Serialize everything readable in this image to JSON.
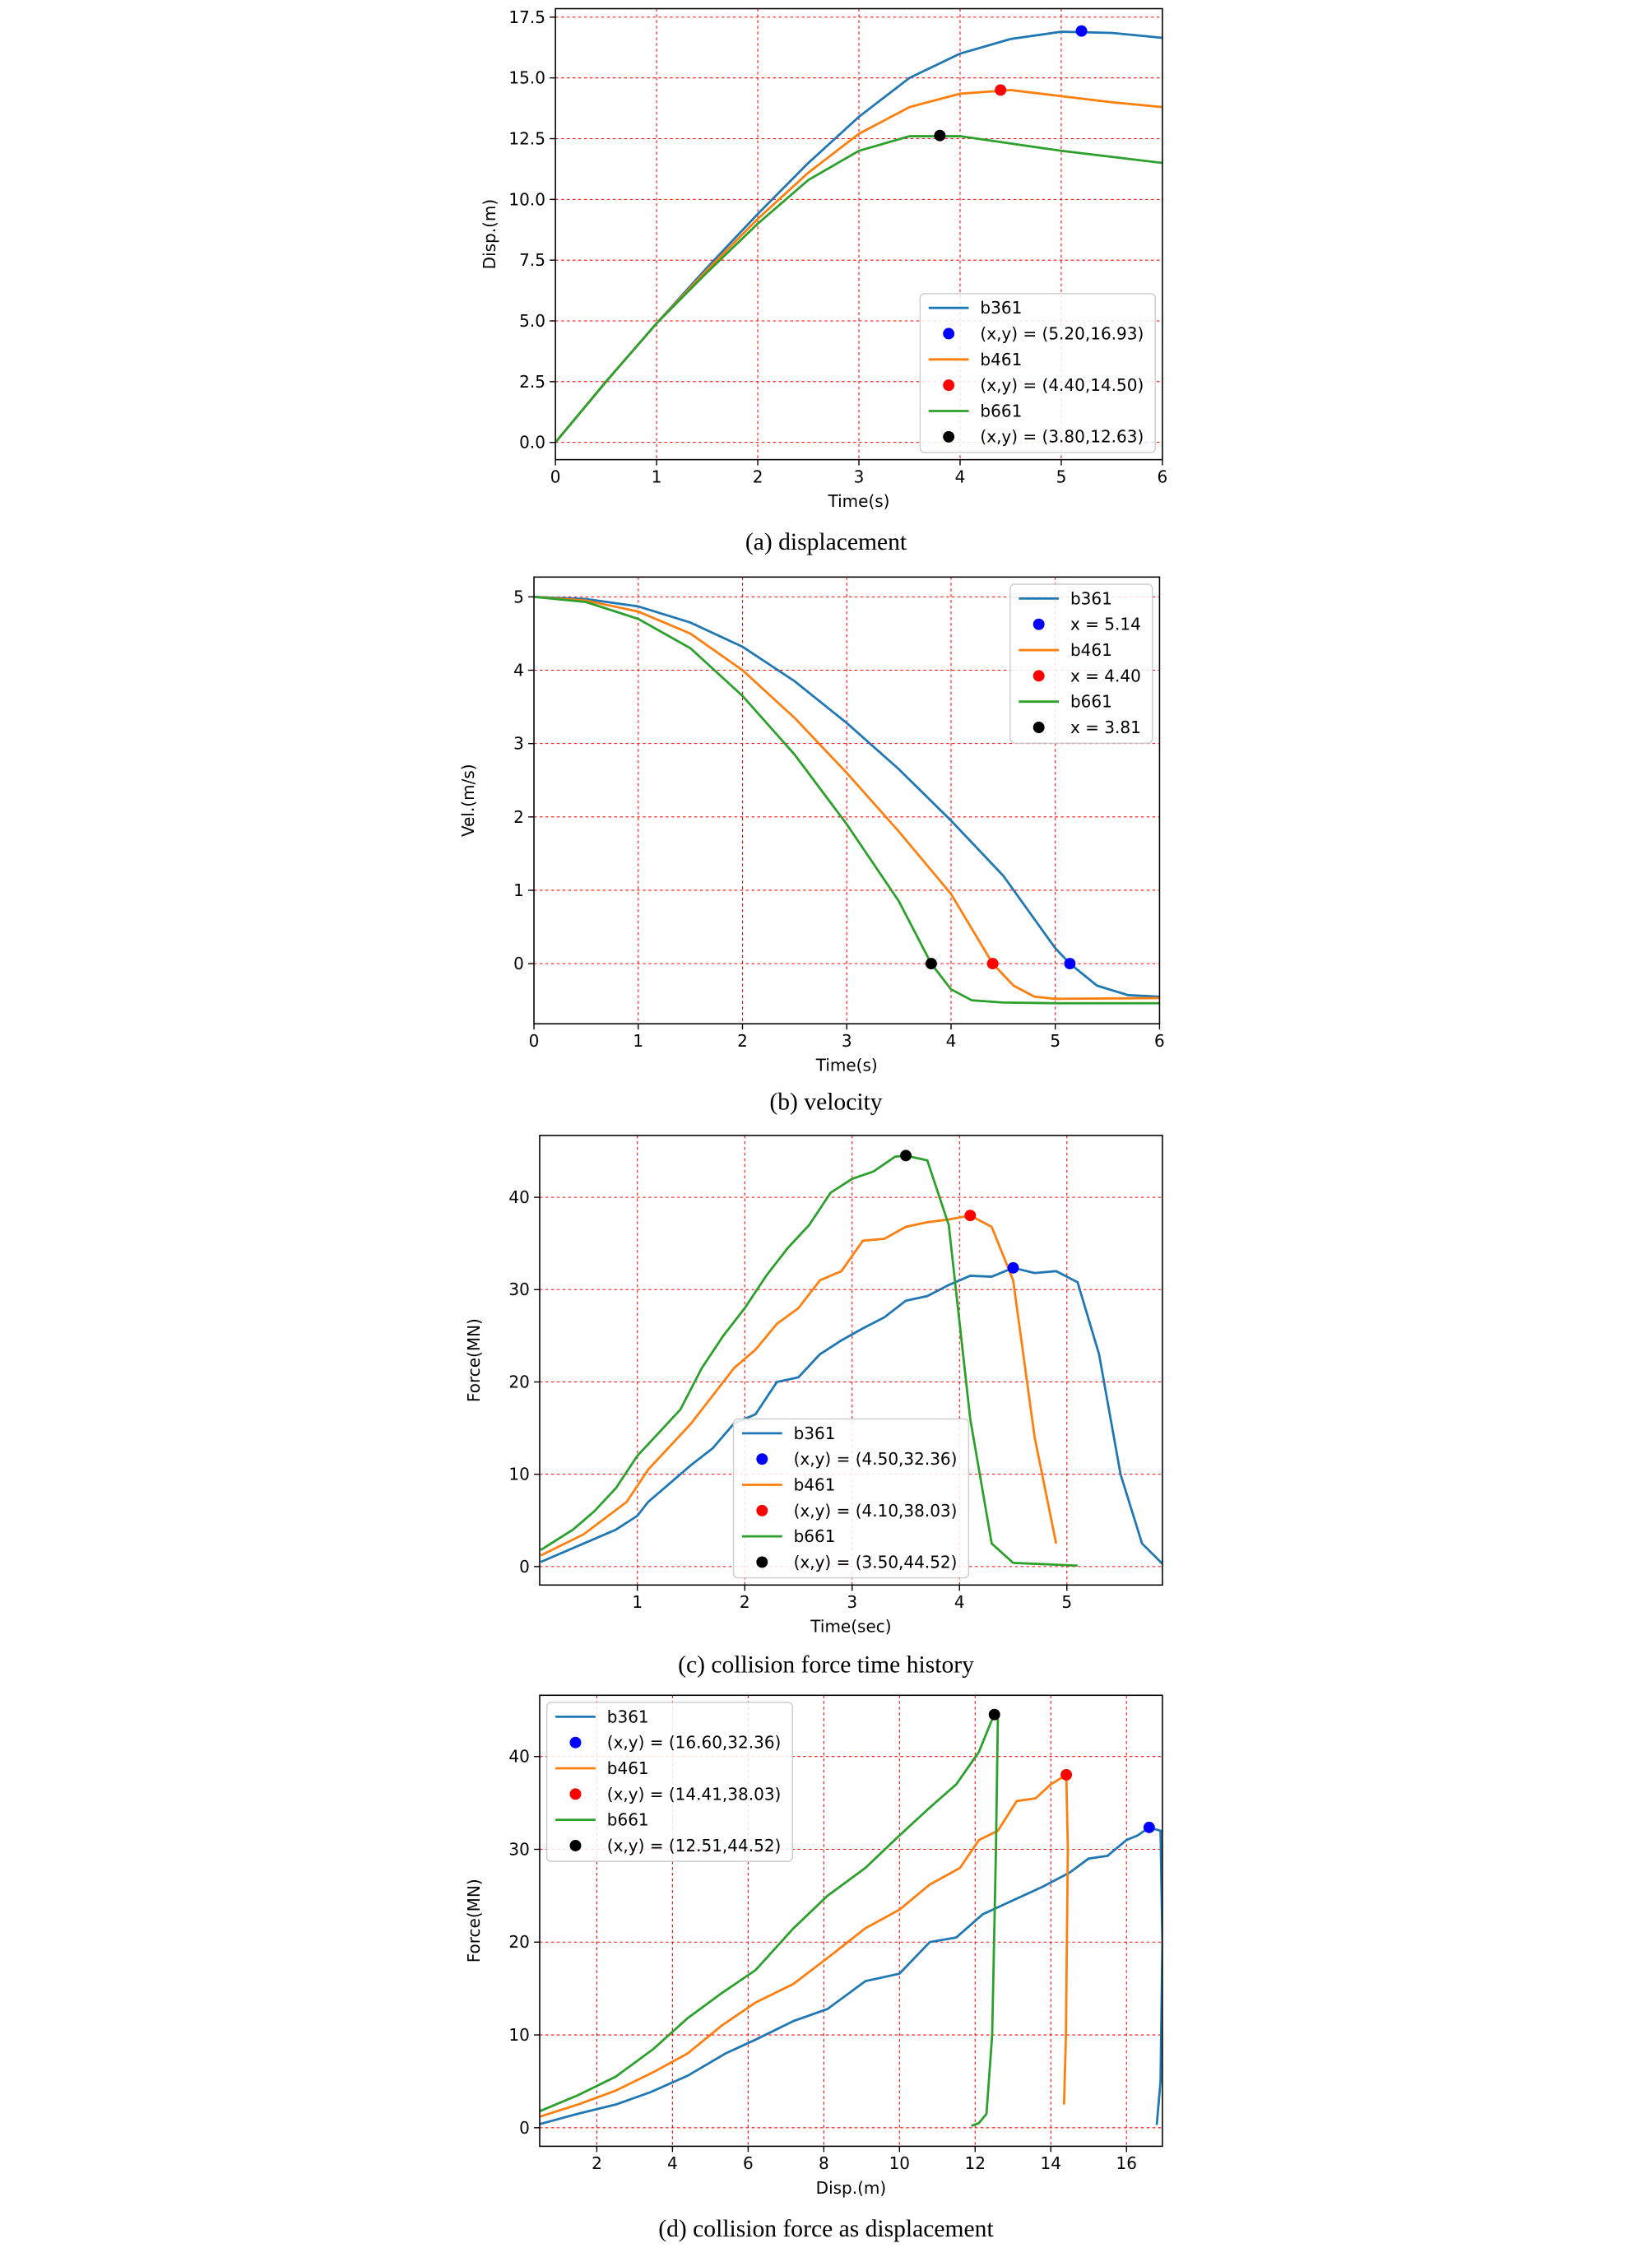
{
  "chart_data": [
    {
      "type": "line",
      "caption": "(a) displacement",
      "xlabel": "Time(s)",
      "ylabel": "Disp.(m)",
      "xlim": [
        0,
        6
      ],
      "ylim": [
        -0.71,
        17.85
      ],
      "xticks": [
        0,
        1,
        2,
        3,
        4,
        5,
        6
      ],
      "yticks": [
        {
          "value": 0,
          "label": "0.0"
        },
        2.5,
        {
          "value": 5,
          "label": "5.0"
        },
        7.5,
        {
          "value": 10,
          "label": "10.0"
        },
        12.5,
        {
          "value": 15,
          "label": "15.0"
        },
        17.5
      ],
      "grid": true,
      "legend": "lower right",
      "series": [
        {
          "name": "b361",
          "color": "#1f77b4",
          "x": [
            0,
            0.5,
            1,
            1.5,
            2,
            2.5,
            3,
            3.5,
            4,
            4.5,
            5,
            5.5,
            6
          ],
          "values": [
            0,
            2.5,
            4.9,
            7.2,
            9.4,
            11.5,
            13.4,
            15.0,
            16.0,
            16.6,
            16.9,
            16.85,
            16.65
          ]
        },
        {
          "name": "(x,y) = (5.20,16.93)",
          "color": "#0000ff",
          "marker": true,
          "x": [
            5.2
          ],
          "values": [
            16.93
          ]
        },
        {
          "name": "b461",
          "color": "#ff7f0e",
          "x": [
            0,
            0.5,
            1,
            1.5,
            2,
            2.5,
            3,
            3.5,
            4,
            4.5,
            5,
            5.5,
            6
          ],
          "values": [
            0,
            2.5,
            4.9,
            7.1,
            9.2,
            11.1,
            12.7,
            13.8,
            14.35,
            14.5,
            14.25,
            14.0,
            13.8
          ]
        },
        {
          "name": "(x,y) = (4.40,14.50)",
          "color": "#ff0000",
          "marker": true,
          "x": [
            4.4
          ],
          "values": [
            14.5
          ]
        },
        {
          "name": "b661",
          "color": "#2ca02c",
          "x": [
            0,
            0.5,
            1,
            1.5,
            2,
            2.5,
            3,
            3.5,
            4,
            4.5,
            5,
            5.5,
            6
          ],
          "values": [
            0,
            2.5,
            4.9,
            7.0,
            9.0,
            10.8,
            12.0,
            12.6,
            12.6,
            12.3,
            12.0,
            11.75,
            11.5
          ]
        },
        {
          "name": "(x,y) = (3.80,12.63)",
          "color": "#000000",
          "marker": true,
          "x": [
            3.8
          ],
          "values": [
            12.63
          ]
        }
      ]
    },
    {
      "type": "line",
      "caption": "(b) velocity",
      "xlabel": "Time(s)",
      "ylabel": "Vel.(m/s)",
      "xlim": [
        0,
        6
      ],
      "ylim": [
        -0.82,
        5.27
      ],
      "xticks": [
        0,
        1,
        2,
        3,
        4,
        5,
        6
      ],
      "yticks": [
        0,
        1,
        2,
        3,
        4,
        5
      ],
      "grid": true,
      "legend": "upper right",
      "series": [
        {
          "name": "b361",
          "color": "#1f77b4",
          "x": [
            0,
            0.5,
            1,
            1.5,
            2,
            2.5,
            3,
            3.5,
            4,
            4.5,
            5,
            5.14,
            5.4,
            5.7,
            6
          ],
          "values": [
            5,
            4.97,
            4.87,
            4.65,
            4.32,
            3.85,
            3.28,
            2.65,
            1.95,
            1.2,
            0.21,
            0,
            -0.3,
            -0.43,
            -0.45
          ]
        },
        {
          "name": "x = 5.14",
          "color": "#0000ff",
          "marker": true,
          "x": [
            5.14
          ],
          "values": [
            0
          ]
        },
        {
          "name": "b461",
          "color": "#ff7f0e",
          "x": [
            0,
            0.5,
            1,
            1.5,
            2,
            2.5,
            3,
            3.5,
            4,
            4.4,
            4.6,
            4.8,
            5,
            6
          ],
          "values": [
            5,
            4.95,
            4.8,
            4.5,
            4.0,
            3.35,
            2.6,
            1.8,
            0.95,
            0,
            -0.3,
            -0.45,
            -0.48,
            -0.47
          ]
        },
        {
          "name": "x = 4.40",
          "color": "#ff0000",
          "marker": true,
          "x": [
            4.4
          ],
          "values": [
            0
          ]
        },
        {
          "name": "b661",
          "color": "#2ca02c",
          "x": [
            0,
            0.5,
            1,
            1.5,
            2,
            2.5,
            3,
            3.5,
            3.81,
            4.0,
            4.2,
            4.5,
            5,
            6
          ],
          "values": [
            5,
            4.93,
            4.7,
            4.3,
            3.65,
            2.85,
            1.9,
            0.85,
            0,
            -0.35,
            -0.5,
            -0.53,
            -0.54,
            -0.54
          ]
        },
        {
          "name": "x = 3.81",
          "color": "#000000",
          "marker": true,
          "x": [
            3.81
          ],
          "values": [
            0
          ]
        }
      ]
    },
    {
      "type": "line",
      "caption": "(c) collision force time history",
      "xlabel": "Time(sec)",
      "ylabel": "Force(MN)",
      "xlim": [
        0.09,
        5.89
      ],
      "ylim": [
        -2.0,
        46.7
      ],
      "xticks": [
        1,
        2,
        3,
        4,
        5
      ],
      "yticks": [
        0,
        10,
        20,
        30,
        40
      ],
      "grid": true,
      "legend": "lower center",
      "series": [
        {
          "name": "b361",
          "color": "#1f77b4",
          "x": [
            0.1,
            0.5,
            0.8,
            1,
            1.1,
            1.3,
            1.5,
            1.7,
            1.9,
            2.1,
            2.3,
            2.5,
            2.7,
            2.9,
            3.1,
            3.3,
            3.5,
            3.7,
            3.9,
            4.1,
            4.3,
            4.5,
            4.7,
            4.9,
            5.1,
            5.3,
            5.5,
            5.7,
            5.89
          ],
          "values": [
            0.5,
            2.5,
            4,
            5.5,
            7,
            9,
            11,
            12.8,
            15.5,
            16.5,
            20,
            20.5,
            23,
            24.5,
            25.8,
            27,
            28.8,
            29.3,
            30.5,
            31.5,
            31.4,
            32.36,
            31.8,
            32,
            30.8,
            23,
            10,
            2.5,
            0.3
          ]
        },
        {
          "name": "(x,y) = (4.50,32.36)",
          "color": "#0000ff",
          "marker": true,
          "x": [
            4.5
          ],
          "values": [
            32.36
          ]
        },
        {
          "name": "b461",
          "color": "#ff7f0e",
          "x": [
            0.1,
            0.5,
            0.9,
            1.1,
            1.3,
            1.5,
            1.7,
            1.9,
            2.1,
            2.3,
            2.5,
            2.7,
            2.9,
            3.1,
            3.3,
            3.5,
            3.7,
            3.9,
            4.1,
            4.3,
            4.5,
            4.7,
            4.9
          ],
          "values": [
            1.2,
            3.5,
            7,
            10.5,
            13,
            15.5,
            18.5,
            21.5,
            23.5,
            26.3,
            28,
            31,
            32,
            35.3,
            35.5,
            36.8,
            37.3,
            37.6,
            38.03,
            36.8,
            31,
            14,
            2.5
          ]
        },
        {
          "name": "(x,y) = (4.10,38.03)",
          "color": "#ff0000",
          "marker": true,
          "x": [
            4.1
          ],
          "values": [
            38.03
          ]
        },
        {
          "name": "b661",
          "color": "#2ca02c",
          "x": [
            0.1,
            0.4,
            0.6,
            0.8,
            1,
            1.2,
            1.4,
            1.6,
            1.8,
            2,
            2.2,
            2.4,
            2.6,
            2.8,
            3,
            3.2,
            3.4,
            3.5,
            3.7,
            3.9,
            4.1,
            4.3,
            4.5,
            5.1
          ],
          "values": [
            1.8,
            4,
            6,
            8.5,
            12,
            14.5,
            17,
            21.5,
            25,
            28,
            31.5,
            34.5,
            37,
            40.5,
            42,
            42.8,
            44.4,
            44.52,
            44,
            37,
            16,
            2.5,
            0.4,
            0.1
          ]
        },
        {
          "name": "(x,y) = (3.50,44.52)",
          "color": "#000000",
          "marker": true,
          "x": [
            3.5
          ],
          "values": [
            44.52
          ]
        }
      ]
    },
    {
      "type": "line",
      "caption": "(d) collision force as displacement",
      "xlabel": "Disp.(m)",
      "ylabel": "Force(MN)",
      "xlim": [
        0.49,
        16.95
      ],
      "ylim": [
        -2.0,
        46.6
      ],
      "xticks": [
        2,
        4,
        6,
        8,
        10,
        12,
        14,
        16
      ],
      "yticks": [
        0,
        10,
        20,
        30,
        40
      ],
      "grid": true,
      "legend": "upper left",
      "series": [
        {
          "name": "b361",
          "color": "#1f77b4",
          "x": [
            0.5,
            1.5,
            2.5,
            3.4,
            4.4,
            5.4,
            6.2,
            7.2,
            8.1,
            9.1,
            10,
            10.8,
            11.5,
            12.2,
            13,
            13.8,
            14.5,
            15,
            15.5,
            16,
            16.3,
            16.6,
            16.9,
            16.95,
            16.9,
            16.8
          ],
          "values": [
            0.4,
            1.5,
            2.5,
            3.8,
            5.6,
            8,
            9.5,
            11.5,
            12.8,
            15.8,
            16.6,
            20,
            20.5,
            23,
            24.5,
            26,
            27.5,
            29,
            29.3,
            31,
            31.5,
            32.36,
            32,
            20,
            5,
            0.3
          ]
        },
        {
          "name": "(x,y) = (16.60,32.36)",
          "color": "#0000ff",
          "marker": true,
          "x": [
            16.6
          ],
          "values": [
            32.36
          ]
        },
        {
          "name": "b461",
          "color": "#ff7f0e",
          "x": [
            0.5,
            1.5,
            2.5,
            3.5,
            4.4,
            5.3,
            6.2,
            7.2,
            8.1,
            9.1,
            10,
            10.8,
            11.6,
            12.1,
            12.6,
            13.1,
            13.6,
            14,
            14.41,
            14.45,
            14.4,
            14.35
          ],
          "values": [
            1.2,
            2.5,
            4,
            6,
            8,
            11,
            13.5,
            15.5,
            18.3,
            21.5,
            23.5,
            26.2,
            28,
            31,
            32,
            35.2,
            35.5,
            37,
            38.03,
            30,
            10,
            2.5
          ]
        },
        {
          "name": "(x,y) = (14.41,38.03)",
          "color": "#ff0000",
          "marker": true,
          "x": [
            14.41
          ],
          "values": [
            38.03
          ]
        },
        {
          "name": "b661",
          "color": "#2ca02c",
          "x": [
            0.5,
            1.5,
            2.5,
            3.5,
            4.4,
            5.3,
            6.2,
            7.2,
            8.1,
            9.1,
            10,
            10.8,
            11.5,
            12.1,
            12.5,
            12.6,
            12.55,
            12.45,
            12.3,
            12.1,
            11.9
          ],
          "values": [
            1.8,
            3.5,
            5.5,
            8.5,
            11.8,
            14.5,
            17,
            21.5,
            25,
            28,
            31.5,
            34.5,
            37,
            40.5,
            44.52,
            44,
            30,
            10,
            1.5,
            0.5,
            0.2
          ]
        },
        {
          "name": "(x,y) = (12.51,44.52)",
          "color": "#000000",
          "marker": true,
          "x": [
            12.51
          ],
          "values": [
            44.52
          ]
        }
      ]
    }
  ]
}
